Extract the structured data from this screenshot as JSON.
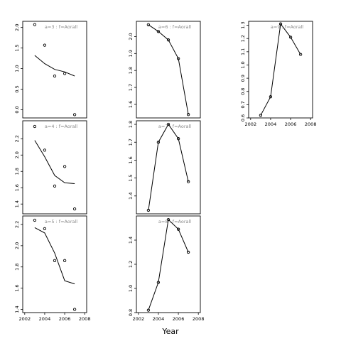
{
  "figure": {
    "xlabel": "Year"
  },
  "chart_data": [
    {
      "id": "a3",
      "type": "scatter+line",
      "label": "a=3  :  f=Aorall",
      "x": [
        2003,
        2004,
        2005,
        2006,
        2007
      ],
      "points": [
        2.07,
        1.57,
        0.82,
        0.88,
        -0.12
      ],
      "fit": [
        1.32,
        1.12,
        0.98,
        0.92,
        0.82
      ],
      "ylim": [
        -0.2,
        2.15
      ],
      "yticks": [
        0.0,
        0.5,
        1.0,
        1.5,
        2.0
      ],
      "ytick_labels": [
        "0.0",
        "0.5",
        "1.0",
        "1.5",
        "2.0"
      ]
    },
    {
      "id": "a4",
      "type": "scatter+line",
      "label": "a=4  :  f=Aorall",
      "x": [
        2003,
        2004,
        2005,
        2006,
        2007
      ],
      "points": [
        2.35,
        2.06,
        1.62,
        1.86,
        1.34
      ],
      "fit": [
        2.18,
        1.98,
        1.75,
        1.66,
        1.65
      ],
      "ylim": [
        1.28,
        2.42
      ],
      "yticks": [
        1.4,
        1.6,
        1.8,
        2.0,
        2.2
      ],
      "ytick_labels": [
        "1.4",
        "1.6",
        "1.8",
        "2.0",
        "2.2"
      ]
    },
    {
      "id": "a5",
      "type": "scatter+line",
      "label": "a=5  :  f=Aorall",
      "x": [
        2003,
        2004,
        2005,
        2006,
        2007
      ],
      "points": [
        2.24,
        2.16,
        1.86,
        1.86,
        1.4
      ],
      "fit": [
        2.17,
        2.12,
        1.93,
        1.67,
        1.64
      ],
      "ylim": [
        1.37,
        2.28
      ],
      "yticks": [
        1.4,
        1.6,
        1.8,
        2.0,
        2.2
      ],
      "ytick_labels": [
        "1.4",
        "1.6",
        "1.8",
        "2.0",
        "2.2"
      ]
    },
    {
      "id": "a6",
      "type": "scatter+line",
      "label": "a=6  :  f=Aorall",
      "x": [
        2003,
        2004,
        2005,
        2006,
        2007
      ],
      "points": [
        2.07,
        2.03,
        1.98,
        1.87,
        1.54
      ],
      "ylim": [
        1.52,
        2.09
      ],
      "yticks": [
        1.6,
        1.7,
        1.8,
        1.9,
        2.0
      ],
      "ytick_labels": [
        "1.6",
        "1.7",
        "1.8",
        "1.9",
        "2.0"
      ]
    },
    {
      "id": "a7",
      "type": "scatter+line",
      "label": "a=7  :  f=Aorall",
      "x": [
        2003,
        2004,
        2005,
        2006,
        2007
      ],
      "points": [
        1.32,
        1.7,
        1.8,
        1.72,
        1.48
      ],
      "ylim": [
        1.3,
        1.82
      ],
      "yticks": [
        1.4,
        1.5,
        1.6,
        1.7,
        1.8
      ],
      "ytick_labels": [
        "1.4",
        "1.5",
        "1.6",
        "1.7",
        "1.8"
      ]
    },
    {
      "id": "a8",
      "type": "scatter+line",
      "label": "a=8  :  f=Aorall",
      "x": [
        2003,
        2004,
        2005,
        2006,
        2007
      ],
      "points": [
        0.82,
        1.05,
        1.57,
        1.49,
        1.3
      ],
      "ylim": [
        0.8,
        1.6
      ],
      "yticks": [
        0.8,
        1.0,
        1.2,
        1.4
      ],
      "ytick_labels": [
        "0.8",
        "1.0",
        "1.2",
        "1.4"
      ]
    },
    {
      "id": "a9",
      "type": "scatter+line",
      "label": "a=9  :  f=Aorall",
      "x": [
        2003,
        2004,
        2005,
        2006,
        2007
      ],
      "points": [
        0.62,
        0.76,
        1.31,
        1.21,
        1.08
      ],
      "ylim": [
        0.6,
        1.33
      ],
      "yticks": [
        0.6,
        0.7,
        0.8,
        0.9,
        1.0,
        1.1,
        1.2,
        1.3
      ],
      "ytick_labels": [
        "0.6",
        "0.7",
        "0.8",
        "0.9",
        "1.0",
        "1.1",
        "1.2",
        "1.3"
      ]
    }
  ],
  "x_axis": {
    "xlim": [
      2001.8,
      2008.2
    ],
    "ticks": [
      2002,
      2004,
      2006,
      2008
    ],
    "tick_labels": [
      "2002",
      "2004",
      "2006",
      "2008"
    ]
  }
}
